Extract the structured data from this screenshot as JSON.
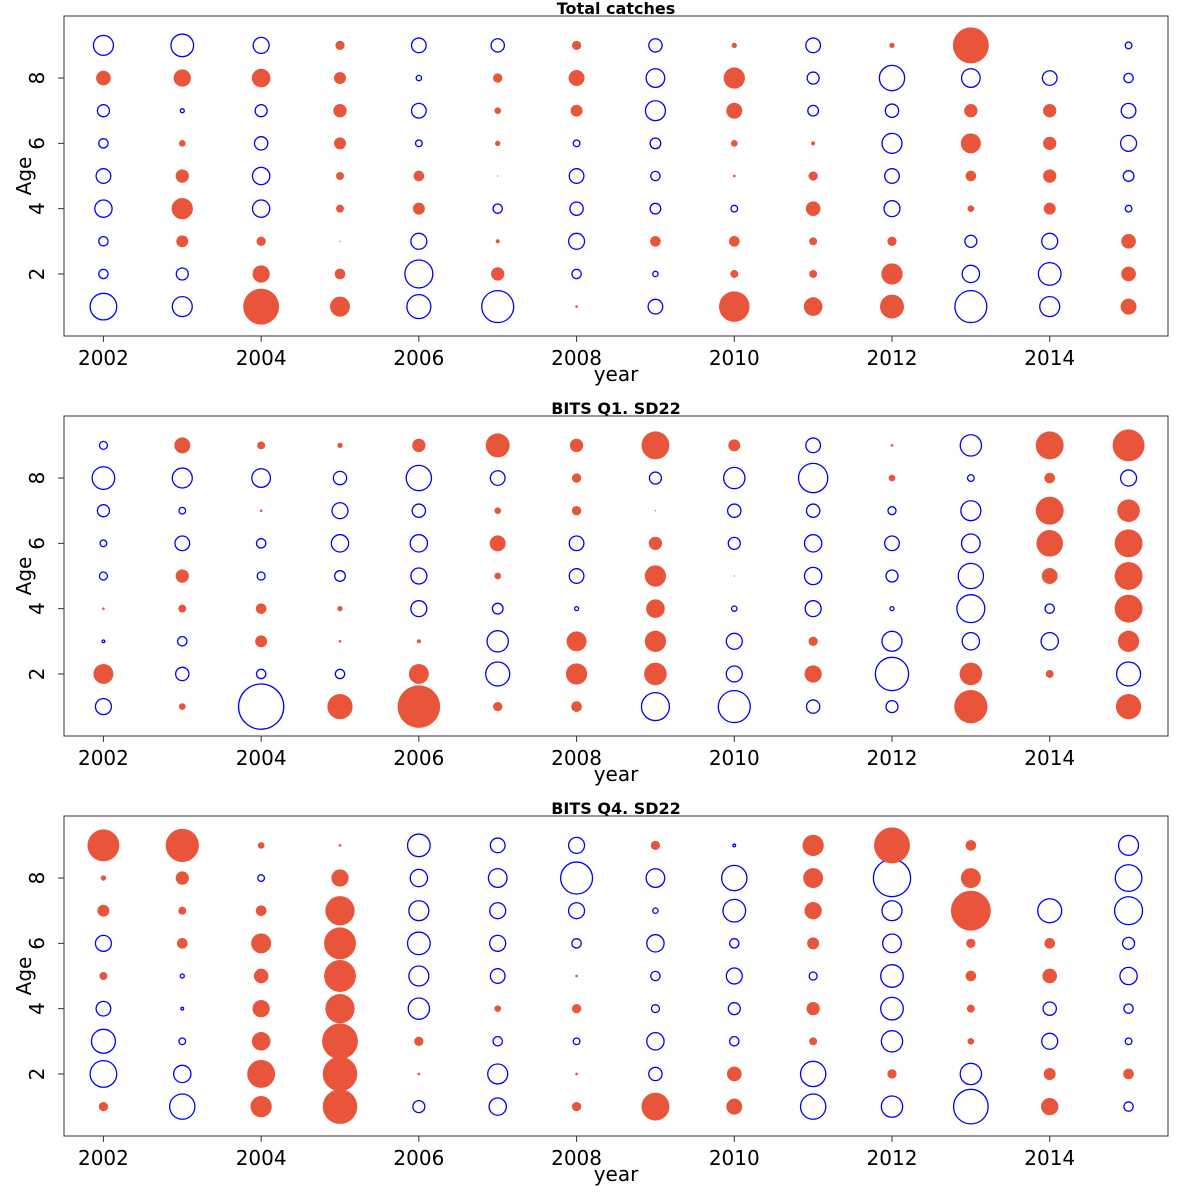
{
  "chart_data": [
    {
      "type": "scatter",
      "subtype": "bubble",
      "title": "Total catches",
      "xlabel": "year",
      "ylabel": "Age",
      "xlim": [
        2001.5,
        2015.5
      ],
      "ylim": [
        0.1,
        9.9
      ],
      "xticks": [
        2002,
        2004,
        2006,
        2008,
        2010,
        2012,
        2014
      ],
      "yticks": [
        2,
        4,
        6,
        8
      ],
      "grid": false,
      "legend": "none",
      "colors": {
        "positive": "#e8553a",
        "negative": "#0000ff"
      },
      "size_scale": "r",
      "x": [
        2002,
        2003,
        2004,
        2005,
        2006,
        2007,
        2008,
        2009,
        2010,
        2011,
        2012,
        2013,
        2014,
        2015
      ],
      "y": [
        1,
        2,
        3,
        4,
        5,
        6,
        7,
        8,
        9
      ],
      "values": [
        [
          -1.0,
          -0.75,
          1.35,
          0.75,
          -0.9,
          -1.2,
          0.1,
          -0.55,
          1.15,
          0.7,
          0.9,
          -1.2,
          -0.75,
          0.6
        ],
        [
          -0.35,
          -0.45,
          0.65,
          0.4,
          -1.05,
          0.5,
          -0.35,
          -0.2,
          0.3,
          0.3,
          0.8,
          -0.65,
          -0.85,
          0.55
        ],
        [
          -0.35,
          0.45,
          0.35,
          0.05,
          -0.6,
          0.15,
          -0.6,
          0.4,
          0.4,
          0.3,
          0.35,
          -0.45,
          -0.6,
          0.55
        ],
        [
          -0.65,
          0.8,
          -0.65,
          0.3,
          0.45,
          -0.35,
          -0.5,
          -0.4,
          -0.25,
          0.55,
          -0.6,
          0.25,
          0.45,
          -0.25
        ],
        [
          -0.55,
          0.5,
          -0.65,
          0.3,
          0.4,
          0.05,
          -0.55,
          -0.35,
          0.1,
          0.35,
          -0.55,
          0.4,
          0.5,
          -0.4
        ],
        [
          -0.35,
          0.25,
          -0.5,
          0.45,
          -0.25,
          0.2,
          -0.25,
          -0.4,
          0.25,
          0.15,
          -0.75,
          0.75,
          0.5,
          -0.6
        ],
        [
          -0.45,
          -0.15,
          -0.45,
          0.5,
          -0.55,
          0.25,
          0.45,
          -0.75,
          0.6,
          -0.4,
          -0.5,
          0.5,
          0.5,
          -0.55
        ],
        [
          0.55,
          0.65,
          0.7,
          0.45,
          -0.2,
          0.35,
          0.6,
          -0.7,
          0.8,
          -0.45,
          -0.95,
          -0.7,
          -0.55,
          -0.35
        ],
        [
          -0.75,
          -0.85,
          -0.6,
          0.35,
          -0.55,
          -0.5,
          0.35,
          -0.5,
          0.2,
          -0.55,
          0.2,
          1.35,
          0.0,
          -0.25
        ]
      ]
    },
    {
      "type": "scatter",
      "subtype": "bubble",
      "title": "BITS Q1. SD22",
      "xlabel": "year",
      "ylabel": "Age",
      "xlim": [
        2001.5,
        2015.5
      ],
      "ylim": [
        0.1,
        9.9
      ],
      "xticks": [
        2002,
        2004,
        2006,
        2008,
        2010,
        2012,
        2014
      ],
      "yticks": [
        2,
        4,
        6,
        8
      ],
      "grid": false,
      "legend": "none",
      "colors": {
        "positive": "#e8553a",
        "negative": "#0000ff"
      },
      "size_scale": "r",
      "x": [
        2002,
        2003,
        2004,
        2005,
        2006,
        2007,
        2008,
        2009,
        2010,
        2011,
        2012,
        2013,
        2014,
        2015
      ],
      "y": [
        1,
        2,
        3,
        4,
        5,
        6,
        7,
        8,
        9
      ],
      "values": [
        [
          -0.6,
          0.25,
          -1.7,
          0.95,
          1.6,
          0.35,
          0.4,
          -1.05,
          -1.2,
          -0.5,
          -0.45,
          1.25,
          0.0,
          0.95
        ],
        [
          0.75,
          -0.5,
          -0.35,
          -0.35,
          0.75,
          -0.9,
          0.8,
          0.85,
          -0.6,
          0.65,
          -1.25,
          0.85,
          0.3,
          -0.9
        ],
        [
          -0.1,
          -0.35,
          0.45,
          0.1,
          0.15,
          -0.8,
          0.75,
          0.8,
          -0.6,
          0.35,
          -0.75,
          -0.65,
          -0.65,
          0.8
        ],
        [
          0.1,
          0.3,
          0.4,
          0.2,
          -0.6,
          -0.4,
          -0.15,
          0.7,
          -0.2,
          -0.6,
          -0.15,
          -1.05,
          -0.35,
          1.05
        ],
        [
          -0.3,
          0.5,
          -0.3,
          -0.4,
          -0.6,
          0.25,
          -0.55,
          0.8,
          0.05,
          -0.65,
          -0.45,
          -0.95,
          0.6,
          1.05
        ],
        [
          -0.25,
          -0.55,
          -0.35,
          -0.65,
          -0.65,
          0.6,
          -0.55,
          0.5,
          -0.45,
          -0.65,
          -0.55,
          -0.7,
          1.0,
          1.05
        ],
        [
          -0.45,
          -0.25,
          0.1,
          -0.6,
          -0.5,
          0.25,
          0.35,
          0.05,
          -0.5,
          -0.5,
          -0.3,
          -0.75,
          1.05,
          0.85
        ],
        [
          -0.85,
          -0.75,
          -0.7,
          -0.5,
          -0.95,
          -0.55,
          0.35,
          -0.45,
          -0.8,
          -1.1,
          0.25,
          -0.25,
          0.4,
          -0.6
        ],
        [
          -0.3,
          0.6,
          0.3,
          0.2,
          0.5,
          0.9,
          0.5,
          1.05,
          0.45,
          -0.55,
          0.1,
          -0.8,
          1.05,
          1.2
        ]
      ]
    },
    {
      "type": "scatter",
      "subtype": "bubble",
      "title": "BITS Q4. SD22",
      "xlabel": "year",
      "ylabel": "Age",
      "xlim": [
        2001.5,
        2015.5
      ],
      "ylim": [
        0.1,
        9.9
      ],
      "xticks": [
        2002,
        2004,
        2006,
        2008,
        2010,
        2012,
        2014
      ],
      "yticks": [
        2,
        4,
        6,
        8
      ],
      "grid": false,
      "legend": "none",
      "colors": {
        "positive": "#e8553a",
        "negative": "#0000ff"
      },
      "size_scale": "r",
      "x": [
        2002,
        2003,
        2004,
        2005,
        2006,
        2007,
        2008,
        2009,
        2010,
        2011,
        2012,
        2013,
        2014,
        2015
      ],
      "y": [
        1,
        2,
        3,
        4,
        5,
        6,
        7,
        8,
        9
      ],
      "values": [
        [
          0.35,
          -0.95,
          0.8,
          1.3,
          -0.45,
          -0.65,
          0.35,
          1.05,
          0.6,
          -0.95,
          -0.8,
          -1.3,
          0.65,
          -0.35
        ],
        [
          -1.0,
          -0.65,
          1.05,
          1.3,
          0.1,
          -0.75,
          0.1,
          -0.5,
          0.55,
          -0.95,
          0.35,
          -0.8,
          0.45,
          0.4
        ],
        [
          -0.9,
          -0.25,
          0.7,
          1.35,
          0.35,
          -0.35,
          -0.25,
          -0.65,
          -0.35,
          0.3,
          -0.8,
          0.25,
          -0.6,
          -0.25
        ],
        [
          -0.55,
          -0.1,
          0.65,
          1.1,
          -0.8,
          0.25,
          0.35,
          -0.3,
          -0.45,
          0.5,
          -0.85,
          0.3,
          -0.5,
          -0.35
        ],
        [
          0.3,
          -0.15,
          0.55,
          1.2,
          -0.75,
          -0.55,
          0.1,
          -0.35,
          -0.6,
          -0.3,
          -0.85,
          0.4,
          0.55,
          -0.65
        ],
        [
          -0.6,
          0.4,
          0.75,
          1.2,
          -0.85,
          -0.6,
          -0.35,
          -0.65,
          -0.35,
          0.45,
          -0.7,
          0.35,
          0.4,
          -0.45
        ],
        [
          0.45,
          0.3,
          0.4,
          1.1,
          -0.75,
          -0.6,
          -0.6,
          -0.2,
          -0.85,
          0.65,
          -0.75,
          1.5,
          -0.9,
          -1.05
        ],
        [
          0.2,
          0.5,
          -0.25,
          0.65,
          -0.65,
          -0.7,
          -1.2,
          -0.7,
          -0.95,
          0.75,
          -1.4,
          0.75,
          0.0,
          -1.0
        ],
        [
          1.2,
          1.25,
          0.25,
          0.1,
          -0.85,
          -0.55,
          -0.6,
          0.35,
          -0.1,
          0.8,
          1.35,
          0.4,
          0.0,
          -0.75
        ]
      ]
    }
  ]
}
